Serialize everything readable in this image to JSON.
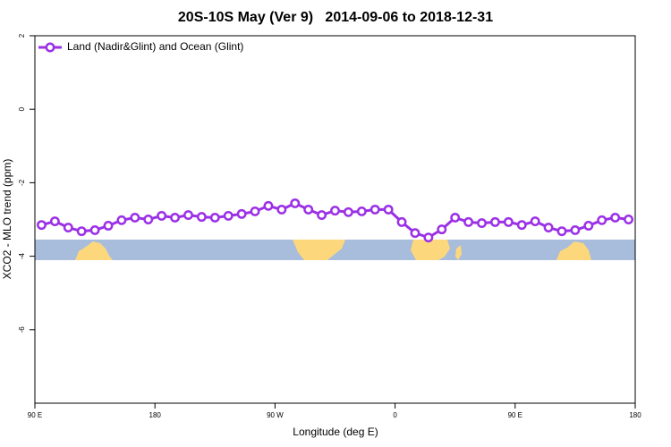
{
  "chart_data": {
    "type": "line",
    "title": "20S-10S May (Ver 9)   2014-09-06 to 2018-12-31",
    "xlabel": "Longitude (deg E)",
    "ylabel": "XCO2 - MLO trend (ppm)",
    "x": [
      95,
      105,
      115,
      125,
      135,
      145,
      155,
      165,
      175,
      185,
      195,
      205,
      215,
      225,
      235,
      245,
      255,
      265,
      275,
      285,
      295,
      305,
      315,
      325,
      335,
      345,
      355,
      365,
      375,
      385,
      395,
      405,
      415,
      425,
      435,
      445,
      455,
      465,
      475,
      485,
      495,
      505,
      515,
      525,
      535
    ],
    "series": [
      {
        "name": "Land (Nadir&Glint) and Ocean (Glint)",
        "color": "#9b30e6",
        "values": [
          -3.15,
          -3.05,
          -3.22,
          -3.32,
          -3.29,
          -3.17,
          -3.02,
          -2.95,
          -3.0,
          -2.9,
          -2.95,
          -2.88,
          -2.93,
          -2.95,
          -2.9,
          -2.85,
          -2.78,
          -2.63,
          -2.73,
          -2.56,
          -2.73,
          -2.88,
          -2.76,
          -2.8,
          -2.78,
          -2.73,
          -2.73,
          -3.07,
          -3.37,
          -3.49,
          -3.27,
          -2.95,
          -3.07,
          -3.1,
          -3.07,
          -3.07,
          -3.15,
          -3.05,
          -3.22,
          -3.32,
          -3.29,
          -3.17,
          -3.02,
          -2.95,
          -3.0
        ]
      }
    ],
    "xlim": [
      90,
      540
    ],
    "xticks": [
      {
        "value": 90,
        "label": "90 E"
      },
      180,
      {
        "value": 270,
        "label": "90 W"
      },
      {
        "value": 360,
        "label": "0"
      },
      {
        "value": 450,
        "label": "90 E"
      },
      {
        "value": 540,
        "label": "180"
      }
    ],
    "ylim": [
      -8,
      2
    ],
    "yticks": [
      2,
      0,
      -2,
      -4,
      -6
    ],
    "legend": "top-left"
  }
}
